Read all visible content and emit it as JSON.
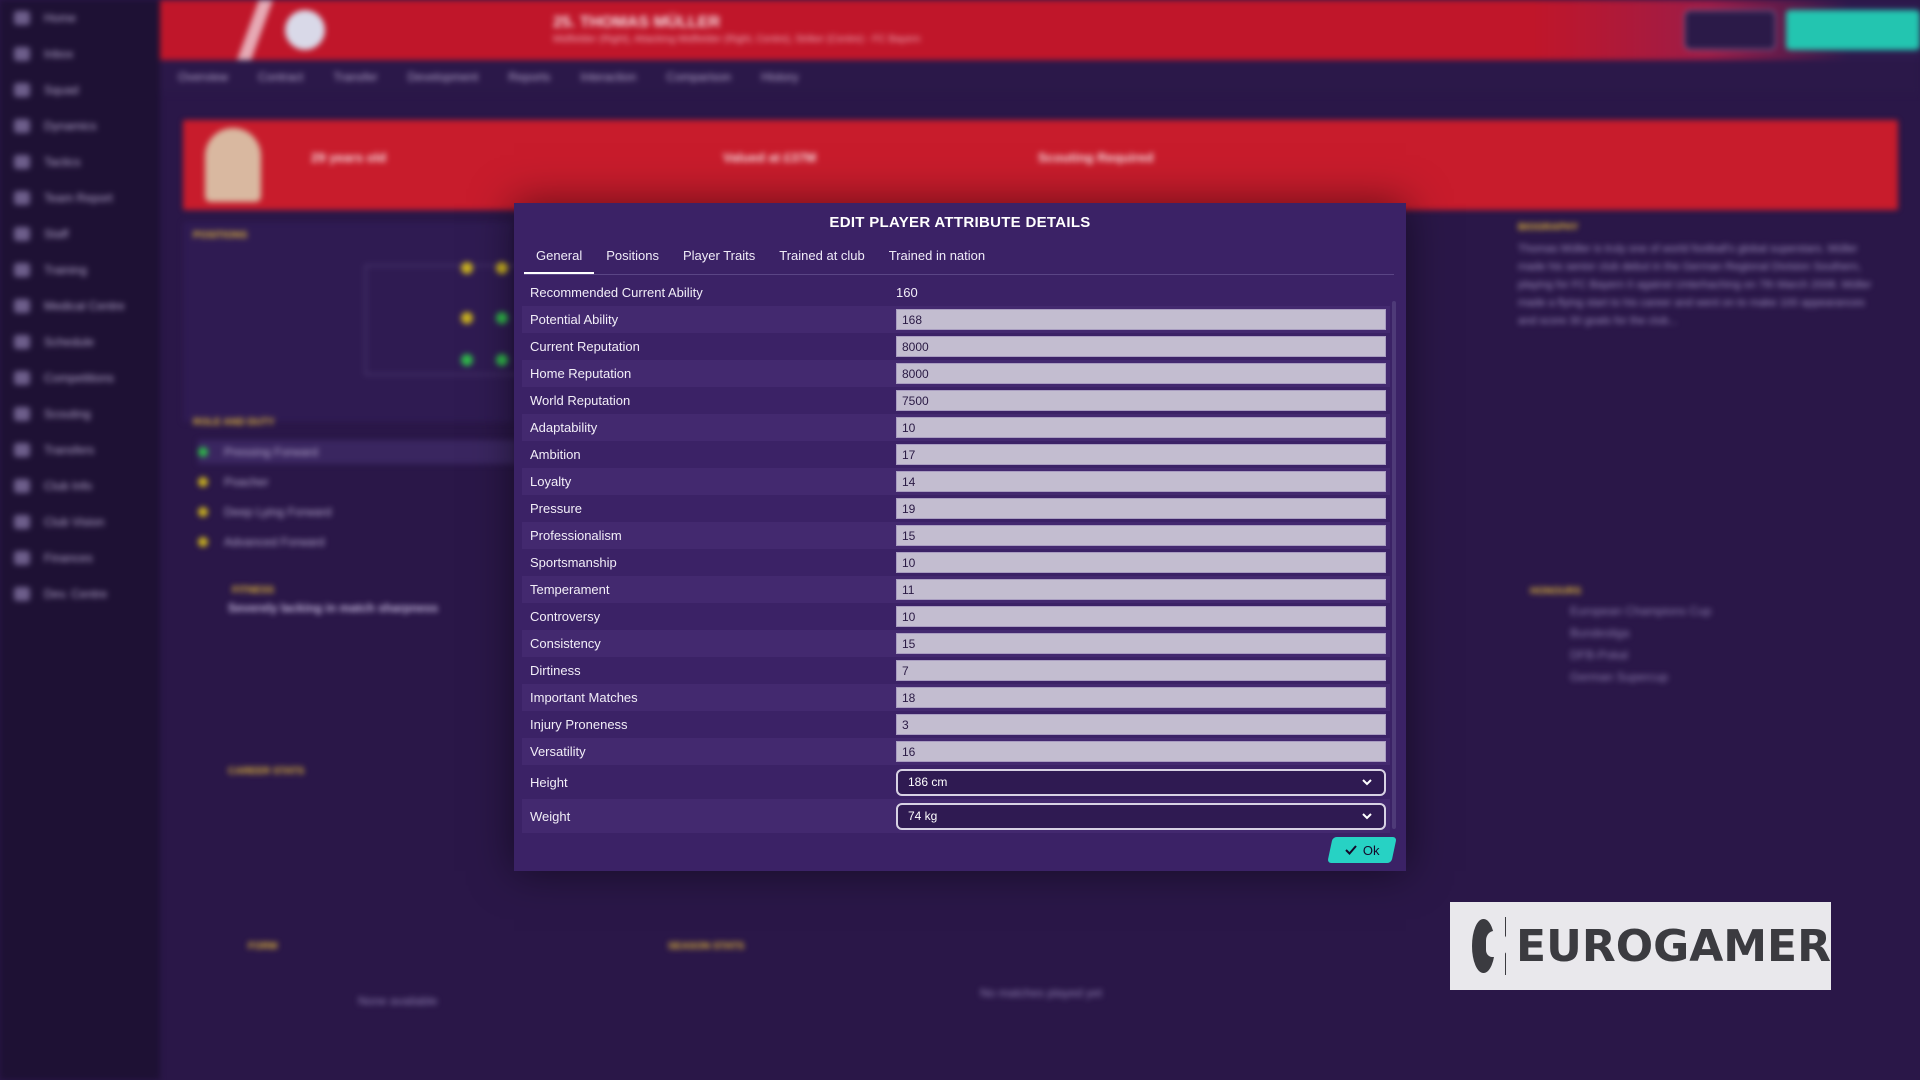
{
  "app": {
    "player_title": "25. THOMAS MÜLLER",
    "player_subtitle": "Midfielder (Right), Attacking Midfielder (Right, Centre), Striker (Centre) - FC Bayern",
    "sidebar_items": [
      "Home",
      "Inbox",
      "Squad",
      "Dynamics",
      "Tactics",
      "Team Report",
      "Staff",
      "Training",
      "Medical Centre",
      "Schedule",
      "Competitions",
      "Scouting",
      "Transfers",
      "Club Info",
      "Club Vision",
      "Finances",
      "Dev. Centre"
    ],
    "subnav_tabs": [
      "Overview",
      "Contract",
      "Transfer",
      "Development",
      "Reports",
      "Interaction",
      "Comparison",
      "History"
    ],
    "profile": {
      "age_text": "29 years old",
      "contract_text": "Valued at £37M",
      "scout_text": "Scouting Required"
    },
    "background_panels": {
      "positions_header": "POSITIONS",
      "roles_header": "ROLE AND DUTY",
      "roles": [
        "Pressing Forward",
        "Poacher",
        "Deep Lying Forward",
        "Advanced Forward"
      ],
      "fitness_title": "FITNESS",
      "fitness_text": "Severely lacking in match sharpness",
      "career_header": "CAREER STATS",
      "form_header": "FORM",
      "season_header": "SEASON STATS",
      "none_available": "None available",
      "no_matches": "No matches played yet",
      "biography_header": "BIOGRAPHY",
      "biography_text": "Thomas Müller is truly one of world football's global superstars. Müller made his senior club debut in the German Regional Division Southern, playing for FC Bayern II against Unterhaching on 7th March 2008. Müller made a flying start to his career and went on to make 100 appearances and score 30 goals for the club...",
      "trophies_header": "HONOURS",
      "trophies": [
        "European Champions Cup",
        "Bundesliga",
        "DFB-Pokal",
        "German Supercup"
      ]
    }
  },
  "modal": {
    "title": "EDIT PLAYER ATTRIBUTE DETAILS",
    "tabs": [
      "General",
      "Positions",
      "Player Traits",
      "Trained at club",
      "Trained in nation"
    ],
    "active_tab": "General",
    "recommended": {
      "label": "Recommended Current Ability",
      "value": "160"
    },
    "attributes": [
      {
        "label": "Potential Ability",
        "value": "168"
      },
      {
        "label": "Current Reputation",
        "value": "8000"
      },
      {
        "label": "Home Reputation",
        "value": "8000"
      },
      {
        "label": "World Reputation",
        "value": "7500"
      },
      {
        "label": "Adaptability",
        "value": "10"
      },
      {
        "label": "Ambition",
        "value": "17"
      },
      {
        "label": "Loyalty",
        "value": "14"
      },
      {
        "label": "Pressure",
        "value": "19"
      },
      {
        "label": "Professionalism",
        "value": "15"
      },
      {
        "label": "Sportsmanship",
        "value": "10"
      },
      {
        "label": "Temperament",
        "value": "11"
      },
      {
        "label": "Controversy",
        "value": "10"
      },
      {
        "label": "Consistency",
        "value": "15"
      },
      {
        "label": "Dirtiness",
        "value": "7"
      },
      {
        "label": "Important Matches",
        "value": "18"
      },
      {
        "label": "Injury Proneness",
        "value": "3"
      },
      {
        "label": "Versatility",
        "value": "16"
      }
    ],
    "height": {
      "label": "Height",
      "value": "186 cm"
    },
    "weight": {
      "label": "Weight",
      "value": "74 kg"
    },
    "ok_label": "Ok",
    "ok_color": "#27d2c4"
  },
  "watermark": {
    "text": "EUROGAMER"
  }
}
